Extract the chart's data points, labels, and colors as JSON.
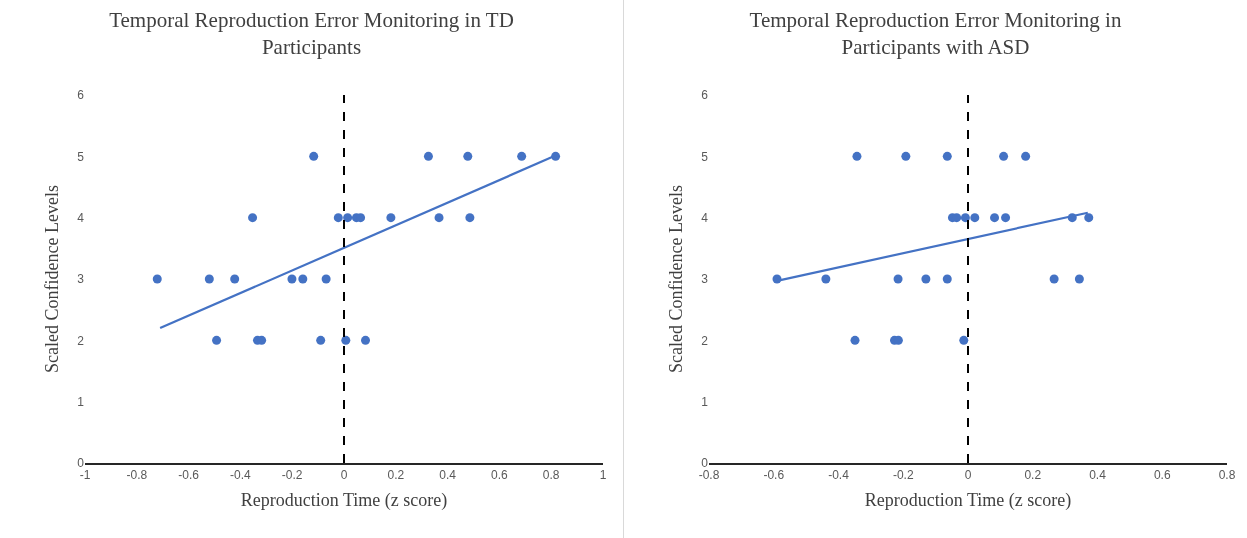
{
  "chart_data": [
    {
      "type": "scatter",
      "title": "Temporal Reproduction Error Monitoring in TD Participants",
      "xlabel": "Reproduction Time (z score)",
      "ylabel": "Scaled Confidence Levels",
      "xlim": [
        -1,
        1
      ],
      "xticks": [
        -1,
        -0.8,
        -0.6,
        -0.4,
        -0.2,
        0,
        0.2,
        0.4,
        0.6,
        0.8,
        1
      ],
      "ylim": [
        0,
        6
      ],
      "yticks": [
        0,
        1,
        2,
        3,
        4,
        5,
        6
      ],
      "grid": false,
      "legend": false,
      "series": [
        {
          "marker": "circle",
          "color": "#4472c4",
          "x": [
            -0.117,
            0.326,
            0.478,
            0.686,
            0.817,
            -0.353,
            -0.022,
            0.014,
            0.048,
            0.064,
            0.181,
            0.367,
            0.486,
            -0.721,
            -0.52,
            -0.422,
            -0.201,
            -0.159,
            -0.069,
            -0.492,
            -0.334,
            -0.318,
            -0.09,
            0.007,
            0.083
          ],
          "values": [
            5,
            5,
            5,
            5,
            5,
            4,
            4,
            4,
            4,
            4,
            4,
            4,
            4,
            3,
            3,
            3,
            3,
            3,
            3,
            2,
            2,
            2,
            2,
            2,
            2
          ]
        },
        {
          "type": "line",
          "marker": "none",
          "line_style": "solid",
          "color": "#4472c4",
          "x": [
            -0.71,
            0.81
          ],
          "values": [
            2.2,
            5.0
          ]
        }
      ],
      "ref_lines": [
        {
          "axis": "x",
          "value": 0,
          "color": "#000000",
          "line_style": "dashed"
        }
      ]
    },
    {
      "type": "scatter",
      "title": "Temporal Reproduction Error Monitoring in Participants with ASD",
      "xlabel": "Reproduction Time (z score)",
      "ylabel": "Scaled Confidence Levels",
      "xlim": [
        -0.8,
        0.8
      ],
      "xticks": [
        -0.8,
        -0.6,
        -0.4,
        -0.2,
        0,
        0.2,
        0.4,
        0.6,
        0.8
      ],
      "ylim": [
        0,
        6
      ],
      "yticks": [
        0,
        1,
        2,
        3,
        4,
        5,
        6
      ],
      "grid": false,
      "legend": false,
      "series": [
        {
          "marker": "circle",
          "color": "#4472c4",
          "x": [
            -0.343,
            -0.192,
            -0.064,
            0.11,
            0.178,
            -0.048,
            -0.035,
            -0.008,
            0.021,
            0.082,
            0.116,
            0.322,
            0.373,
            -0.59,
            -0.439,
            -0.216,
            -0.13,
            -0.064,
            0.266,
            0.344,
            -0.349,
            -0.227,
            -0.215,
            -0.013
          ],
          "values": [
            5,
            5,
            5,
            5,
            5,
            4,
            4,
            4,
            4,
            4,
            4,
            4,
            4,
            3,
            3,
            3,
            3,
            3,
            3,
            3,
            2,
            2,
            2,
            2
          ]
        },
        {
          "type": "line",
          "marker": "none",
          "line_style": "solid",
          "color": "#4472c4",
          "x": [
            -0.59,
            0.37
          ],
          "values": [
            2.97,
            4.08
          ]
        }
      ],
      "ref_lines": [
        {
          "axis": "x",
          "value": 0,
          "color": "#000000",
          "line_style": "dashed"
        }
      ]
    }
  ]
}
